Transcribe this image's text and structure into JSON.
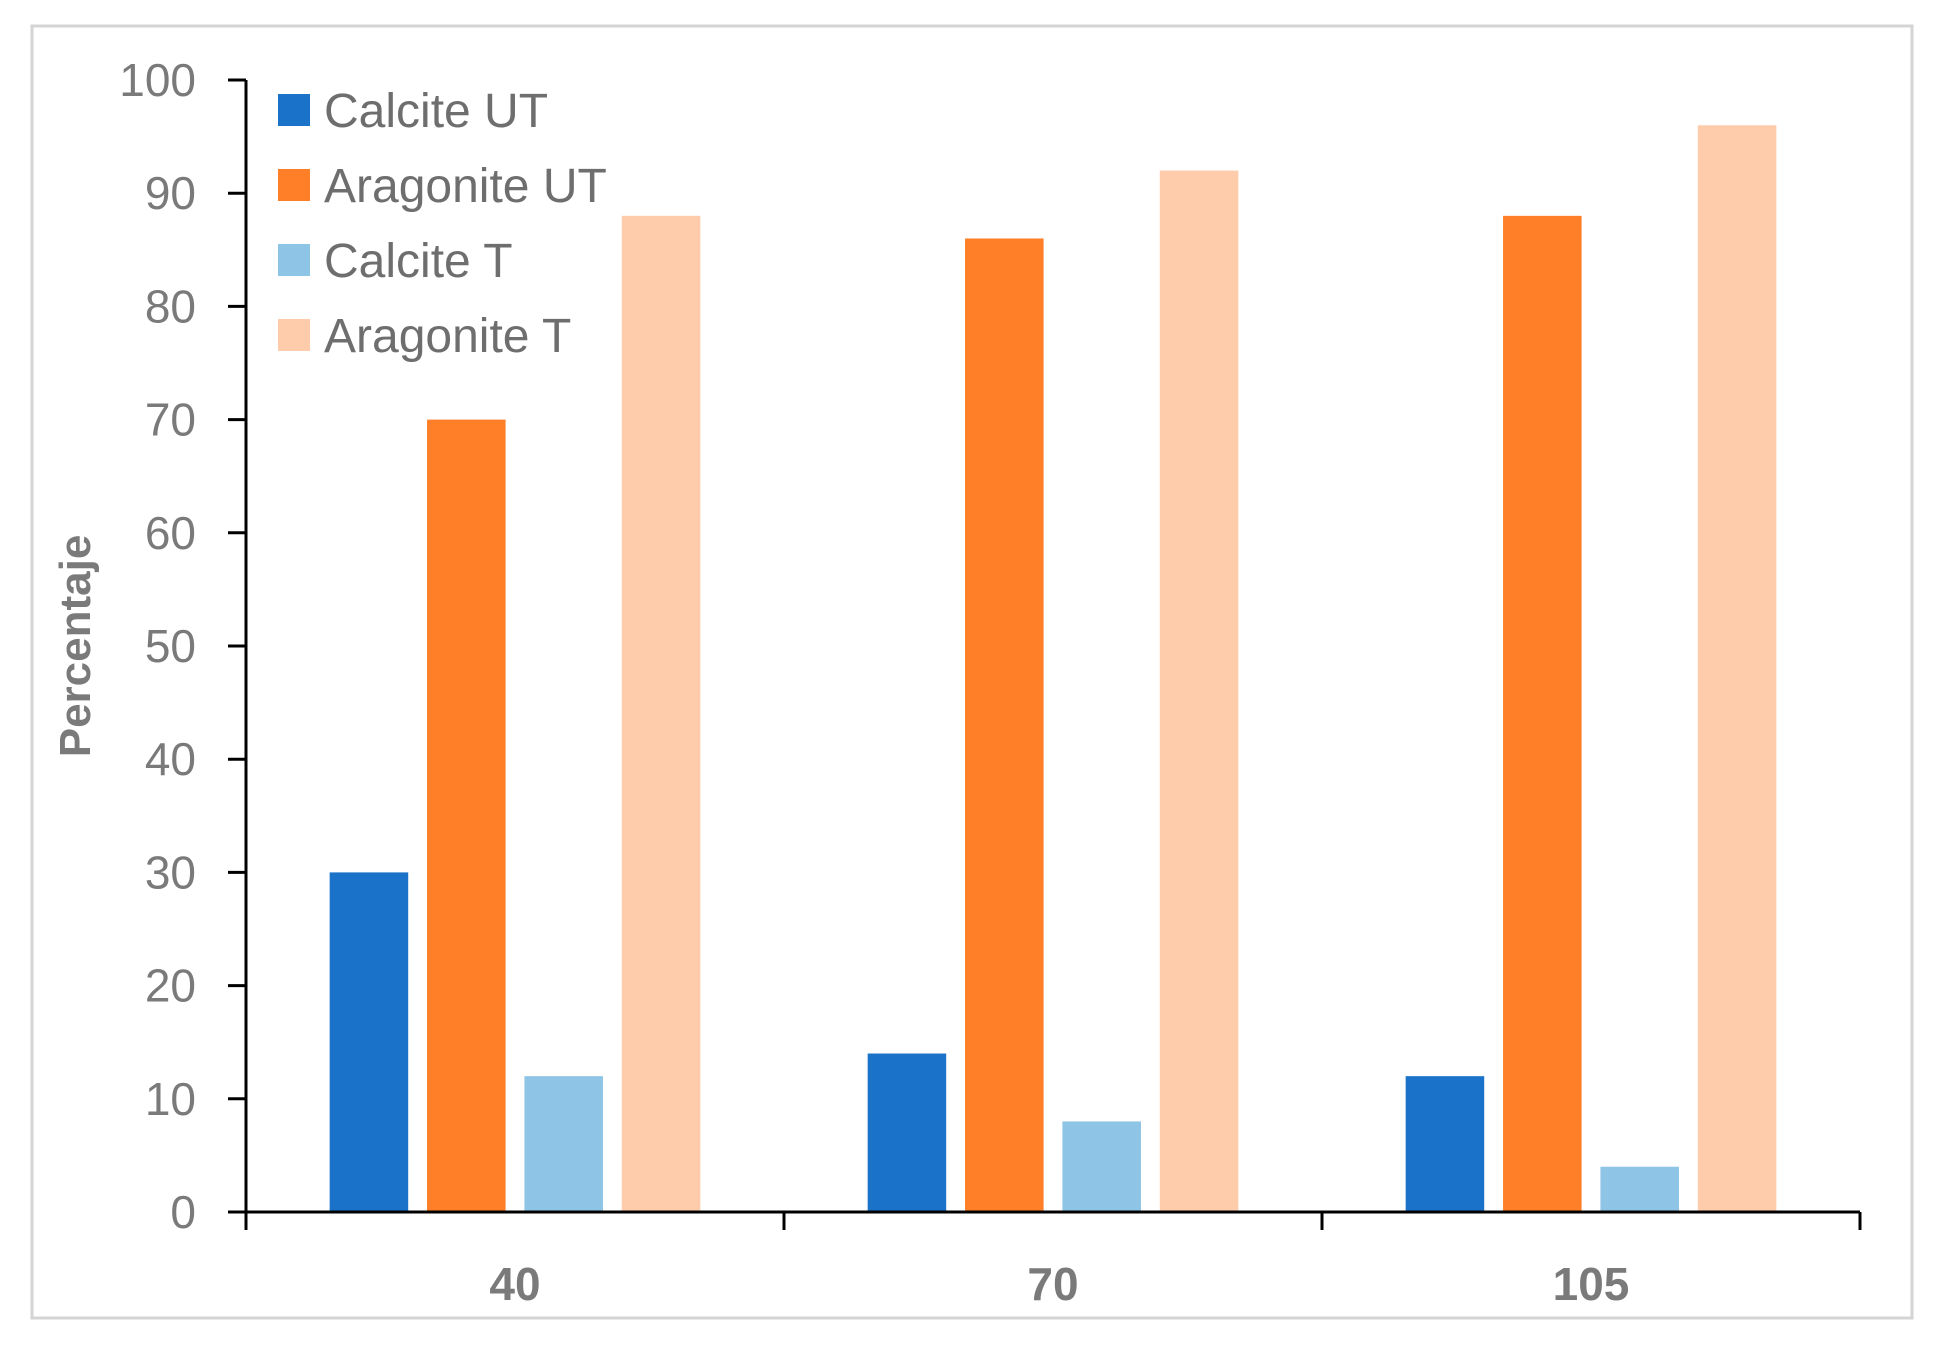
{
  "chart_data": {
    "type": "bar",
    "title": "",
    "xlabel": "",
    "ylabel": "Percentaje",
    "ylim": [
      0,
      100
    ],
    "yticks": [
      "0",
      "10",
      "20",
      "30",
      "40",
      "50",
      "60",
      "70",
      "80",
      "90",
      "100"
    ],
    "categories": [
      "40",
      "70",
      "105"
    ],
    "grid": false,
    "legend_position": "top-left",
    "series": [
      {
        "name": "Calcite UT",
        "color": "#1a73c8",
        "values": [
          30,
          14,
          12
        ]
      },
      {
        "name": "Aragonite UT",
        "color": "#fe7f27",
        "values": [
          70,
          86,
          88
        ]
      },
      {
        "name": "Calcite T",
        "color": "#8ec4e6",
        "values": [
          12,
          8,
          4
        ]
      },
      {
        "name": "Aragonite T",
        "color": "#fecbab",
        "values": [
          88,
          92,
          96
        ]
      }
    ]
  }
}
